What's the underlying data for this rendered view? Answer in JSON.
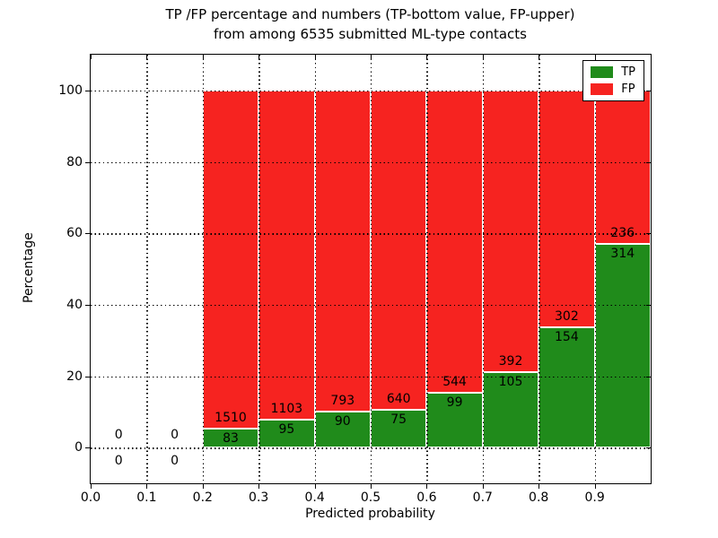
{
  "title": {
    "line1": "TP /FP percentage and numbers (TP-bottom value, FP-upper)",
    "line2": "from among 6535 submitted ML-type contacts"
  },
  "axes": {
    "xlabel": "Predicted probability",
    "ylabel": "Percentage"
  },
  "chart_data": {
    "type": "bar",
    "stacked": true,
    "title": "TP /FP percentage and numbers (TP-bottom value, FP-upper)\nfrom among 6535 submitted ML-type contacts",
    "xlabel": "Predicted probability",
    "ylabel": "Percentage",
    "xlim": [
      0.0,
      1.0
    ],
    "ylim": [
      -10,
      110
    ],
    "grid": true,
    "bar_width": 0.1,
    "xticks": [
      {
        "v": 0.0,
        "label": "0.0"
      },
      {
        "v": 0.1,
        "label": "0.1"
      },
      {
        "v": 0.2,
        "label": "0.2"
      },
      {
        "v": 0.3,
        "label": "0.3"
      },
      {
        "v": 0.4,
        "label": "0.4"
      },
      {
        "v": 0.5,
        "label": "0.5"
      },
      {
        "v": 0.6,
        "label": "0.6"
      },
      {
        "v": 0.7,
        "label": "0.7"
      },
      {
        "v": 0.8,
        "label": "0.8"
      },
      {
        "v": 0.9,
        "label": "0.9"
      }
    ],
    "yticks": [
      {
        "v": 0,
        "label": "0"
      },
      {
        "v": 20,
        "label": "20"
      },
      {
        "v": 40,
        "label": "40"
      },
      {
        "v": 60,
        "label": "60"
      },
      {
        "v": 80,
        "label": "80"
      },
      {
        "v": 100,
        "label": "100"
      }
    ],
    "colors": {
      "tp": "#208b1b",
      "fp": "#f62320",
      "edge": "#ffffff",
      "grid": "#000000"
    },
    "legend": {
      "position": "upper right",
      "entries": [
        {
          "label": "TP",
          "color_key": "tp"
        },
        {
          "label": "FP",
          "color_key": "fp"
        }
      ]
    },
    "bins": [
      {
        "start": 0.0,
        "tp": 0,
        "fp": 0
      },
      {
        "start": 0.1,
        "tp": 0,
        "fp": 0
      },
      {
        "start": 0.2,
        "tp": 83,
        "fp": 1510
      },
      {
        "start": 0.3,
        "tp": 95,
        "fp": 1103
      },
      {
        "start": 0.4,
        "tp": 90,
        "fp": 793
      },
      {
        "start": 0.5,
        "tp": 75,
        "fp": 640
      },
      {
        "start": 0.6,
        "tp": 99,
        "fp": 544
      },
      {
        "start": 0.7,
        "tp": 105,
        "fp": 392
      },
      {
        "start": 0.8,
        "tp": 154,
        "fp": 302
      },
      {
        "start": 0.9,
        "tp": 314,
        "fp": 236
      }
    ]
  }
}
